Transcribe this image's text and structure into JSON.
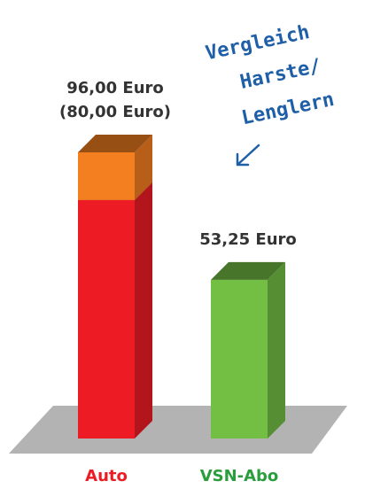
{
  "chart_data": {
    "type": "bar3d_stacked",
    "categories": [
      "Auto",
      "VSN-Abo"
    ],
    "category_colors": [
      "#ed1c24",
      "#2a9d3c"
    ],
    "series": [
      {
        "values": [
          80,
          53.25
        ],
        "colors": [
          "#ed1c24",
          "#72bf44"
        ]
      },
      {
        "values": [
          16,
          null
        ],
        "colors": [
          "#f47f20",
          null
        ]
      }
    ],
    "labels": [
      [
        "96,00 Euro",
        "(80,00 Euro)"
      ],
      [
        "53,25 Euro"
      ]
    ],
    "annotation": [
      "Vergleich",
      "Harste/",
      "Lenglern"
    ]
  }
}
